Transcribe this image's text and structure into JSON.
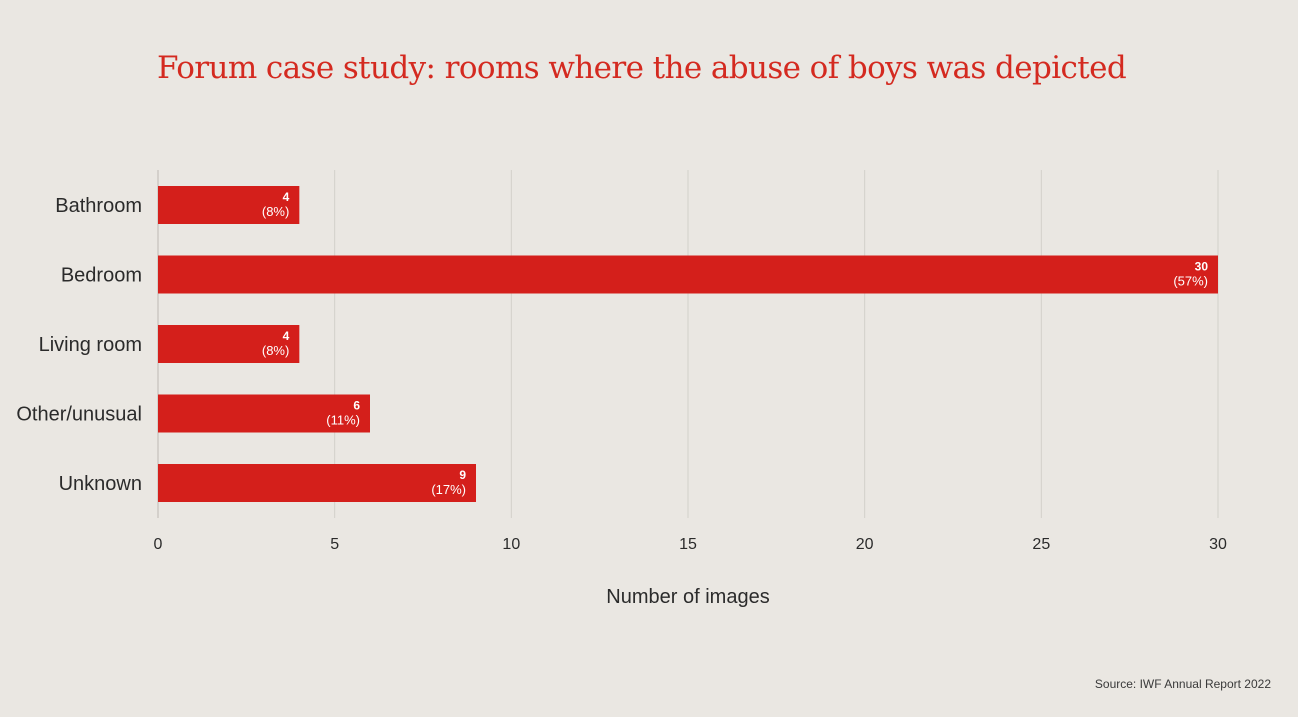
{
  "title": "Forum case study: rooms where the abuse of boys was depicted",
  "source": "Source: IWF Annual Report 2022",
  "colors": {
    "background": "#EAE7E2",
    "bar": "#D41F1B",
    "title": "#D42A20",
    "grid": "#D3D0CB"
  },
  "chart_data": {
    "type": "bar",
    "orientation": "horizontal",
    "title": "Forum case study: rooms where the abuse of boys was depicted",
    "categories": [
      "Bathroom",
      "Bedroom",
      "Living room",
      "Other/unusual",
      "Unknown"
    ],
    "values": [
      4,
      30,
      4,
      6,
      9
    ],
    "value_labels": [
      "4",
      "30",
      "4",
      "6",
      "9"
    ],
    "percent_labels": [
      "(8%)",
      "(57%)",
      "(8%)",
      "(11%)",
      "(17%)"
    ],
    "xlabel": "Number of images",
    "ylabel": "",
    "xlim": [
      0,
      30
    ],
    "xticks": [
      0,
      5,
      10,
      15,
      20,
      25,
      30
    ],
    "xtick_labels": [
      "0",
      "5",
      "10",
      "15",
      "20",
      "25",
      "30"
    ],
    "grid": true,
    "legend": "none"
  }
}
